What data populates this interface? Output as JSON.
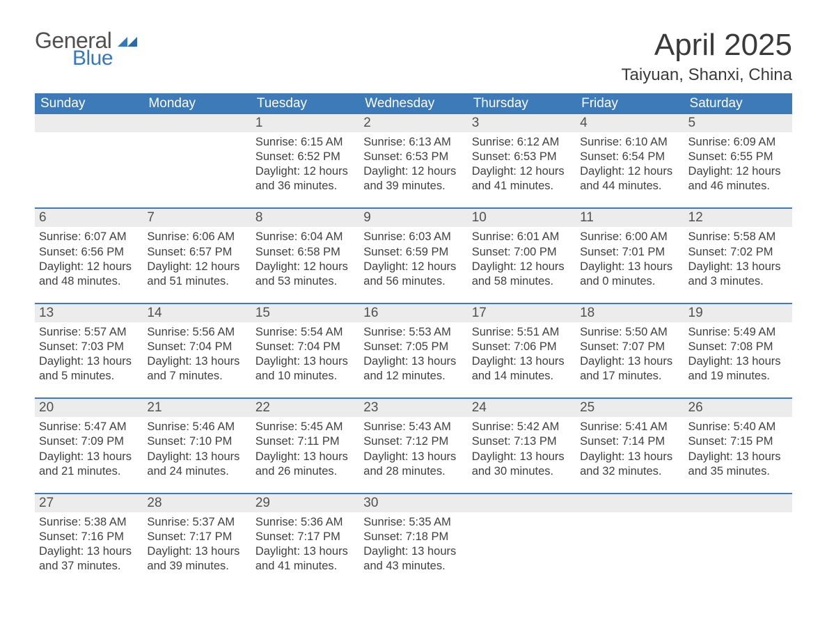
{
  "logo": {
    "text_general": "General",
    "text_blue": "Blue",
    "arrow_color": "#3578bd"
  },
  "header": {
    "month_title": "April 2025",
    "location": "Taiyuan, Shanxi, China"
  },
  "colors": {
    "header_bg": "#3d7ab8",
    "header_text": "#ffffff",
    "daynum_bg": "#ececec",
    "row_border": "#3d7ab8",
    "body_text": "#404040"
  },
  "weekdays": [
    "Sunday",
    "Monday",
    "Tuesday",
    "Wednesday",
    "Thursday",
    "Friday",
    "Saturday"
  ],
  "labels": {
    "sunrise": "Sunrise:",
    "sunset": "Sunset:",
    "daylight": "Daylight:"
  },
  "weeks": [
    [
      null,
      null,
      {
        "d": "1",
        "sunrise": "6:15 AM",
        "sunset": "6:52 PM",
        "daylight": "12 hours and 36 minutes."
      },
      {
        "d": "2",
        "sunrise": "6:13 AM",
        "sunset": "6:53 PM",
        "daylight": "12 hours and 39 minutes."
      },
      {
        "d": "3",
        "sunrise": "6:12 AM",
        "sunset": "6:53 PM",
        "daylight": "12 hours and 41 minutes."
      },
      {
        "d": "4",
        "sunrise": "6:10 AM",
        "sunset": "6:54 PM",
        "daylight": "12 hours and 44 minutes."
      },
      {
        "d": "5",
        "sunrise": "6:09 AM",
        "sunset": "6:55 PM",
        "daylight": "12 hours and 46 minutes."
      }
    ],
    [
      {
        "d": "6",
        "sunrise": "6:07 AM",
        "sunset": "6:56 PM",
        "daylight": "12 hours and 48 minutes."
      },
      {
        "d": "7",
        "sunrise": "6:06 AM",
        "sunset": "6:57 PM",
        "daylight": "12 hours and 51 minutes."
      },
      {
        "d": "8",
        "sunrise": "6:04 AM",
        "sunset": "6:58 PM",
        "daylight": "12 hours and 53 minutes."
      },
      {
        "d": "9",
        "sunrise": "6:03 AM",
        "sunset": "6:59 PM",
        "daylight": "12 hours and 56 minutes."
      },
      {
        "d": "10",
        "sunrise": "6:01 AM",
        "sunset": "7:00 PM",
        "daylight": "12 hours and 58 minutes."
      },
      {
        "d": "11",
        "sunrise": "6:00 AM",
        "sunset": "7:01 PM",
        "daylight": "13 hours and 0 minutes."
      },
      {
        "d": "12",
        "sunrise": "5:58 AM",
        "sunset": "7:02 PM",
        "daylight": "13 hours and 3 minutes."
      }
    ],
    [
      {
        "d": "13",
        "sunrise": "5:57 AM",
        "sunset": "7:03 PM",
        "daylight": "13 hours and 5 minutes."
      },
      {
        "d": "14",
        "sunrise": "5:56 AM",
        "sunset": "7:04 PM",
        "daylight": "13 hours and 7 minutes."
      },
      {
        "d": "15",
        "sunrise": "5:54 AM",
        "sunset": "7:04 PM",
        "daylight": "13 hours and 10 minutes."
      },
      {
        "d": "16",
        "sunrise": "5:53 AM",
        "sunset": "7:05 PM",
        "daylight": "13 hours and 12 minutes."
      },
      {
        "d": "17",
        "sunrise": "5:51 AM",
        "sunset": "7:06 PM",
        "daylight": "13 hours and 14 minutes."
      },
      {
        "d": "18",
        "sunrise": "5:50 AM",
        "sunset": "7:07 PM",
        "daylight": "13 hours and 17 minutes."
      },
      {
        "d": "19",
        "sunrise": "5:49 AM",
        "sunset": "7:08 PM",
        "daylight": "13 hours and 19 minutes."
      }
    ],
    [
      {
        "d": "20",
        "sunrise": "5:47 AM",
        "sunset": "7:09 PM",
        "daylight": "13 hours and 21 minutes."
      },
      {
        "d": "21",
        "sunrise": "5:46 AM",
        "sunset": "7:10 PM",
        "daylight": "13 hours and 24 minutes."
      },
      {
        "d": "22",
        "sunrise": "5:45 AM",
        "sunset": "7:11 PM",
        "daylight": "13 hours and 26 minutes."
      },
      {
        "d": "23",
        "sunrise": "5:43 AM",
        "sunset": "7:12 PM",
        "daylight": "13 hours and 28 minutes."
      },
      {
        "d": "24",
        "sunrise": "5:42 AM",
        "sunset": "7:13 PM",
        "daylight": "13 hours and 30 minutes."
      },
      {
        "d": "25",
        "sunrise": "5:41 AM",
        "sunset": "7:14 PM",
        "daylight": "13 hours and 32 minutes."
      },
      {
        "d": "26",
        "sunrise": "5:40 AM",
        "sunset": "7:15 PM",
        "daylight": "13 hours and 35 minutes."
      }
    ],
    [
      {
        "d": "27",
        "sunrise": "5:38 AM",
        "sunset": "7:16 PM",
        "daylight": "13 hours and 37 minutes."
      },
      {
        "d": "28",
        "sunrise": "5:37 AM",
        "sunset": "7:17 PM",
        "daylight": "13 hours and 39 minutes."
      },
      {
        "d": "29",
        "sunrise": "5:36 AM",
        "sunset": "7:17 PM",
        "daylight": "13 hours and 41 minutes."
      },
      {
        "d": "30",
        "sunrise": "5:35 AM",
        "sunset": "7:18 PM",
        "daylight": "13 hours and 43 minutes."
      },
      null,
      null,
      null
    ]
  ]
}
